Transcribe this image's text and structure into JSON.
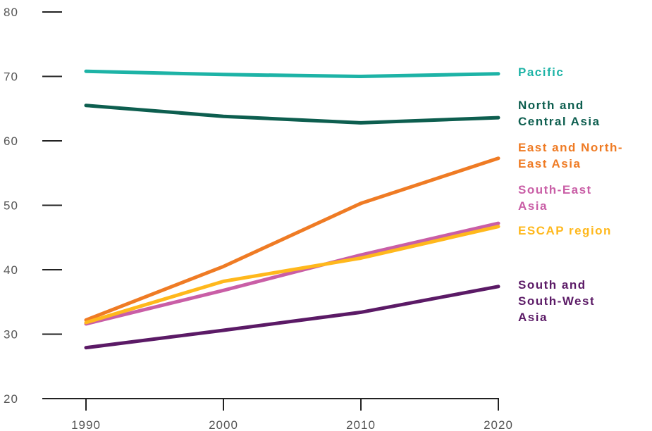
{
  "chart_data": {
    "type": "line",
    "x": [
      1990,
      2000,
      2010,
      2020
    ],
    "xticks": [
      "1990",
      "2000",
      "2010",
      "2020"
    ],
    "yticks": [
      "20",
      "30",
      "40",
      "50",
      "60",
      "70",
      "80"
    ],
    "ylim": [
      20,
      80
    ],
    "xlim": [
      1990,
      2020
    ],
    "grid": false,
    "title": "",
    "xlabel": "",
    "ylabel": "",
    "series": [
      {
        "name": "Pacific",
        "label_lines": [
          "Pacific"
        ],
        "color": "#1db3a6",
        "values": [
          70.8,
          70.3,
          70.0,
          70.4
        ]
      },
      {
        "name": "North and Central Asia",
        "label_lines": [
          "North and",
          "Central Asia"
        ],
        "color": "#0d5e4f",
        "values": [
          65.5,
          63.8,
          62.8,
          63.6
        ]
      },
      {
        "name": "East and North-East Asia",
        "label_lines": [
          "East and North-",
          "East Asia"
        ],
        "color": "#ef7b24",
        "values": [
          32.2,
          40.5,
          50.3,
          57.3
        ]
      },
      {
        "name": "South-East Asia",
        "label_lines": [
          "South-East",
          "Asia"
        ],
        "color": "#c95ea6",
        "values": [
          31.6,
          36.8,
          42.3,
          47.2
        ]
      },
      {
        "name": "ESCAP region",
        "label_lines": [
          "ESCAP region"
        ],
        "color": "#ffb81c",
        "values": [
          31.8,
          38.2,
          41.8,
          46.7
        ]
      },
      {
        "name": "South and South-West Asia",
        "label_lines": [
          "South and",
          "South-West",
          "Asia"
        ],
        "color": "#5b1a66",
        "values": [
          27.9,
          30.6,
          33.4,
          37.4
        ]
      }
    ]
  }
}
